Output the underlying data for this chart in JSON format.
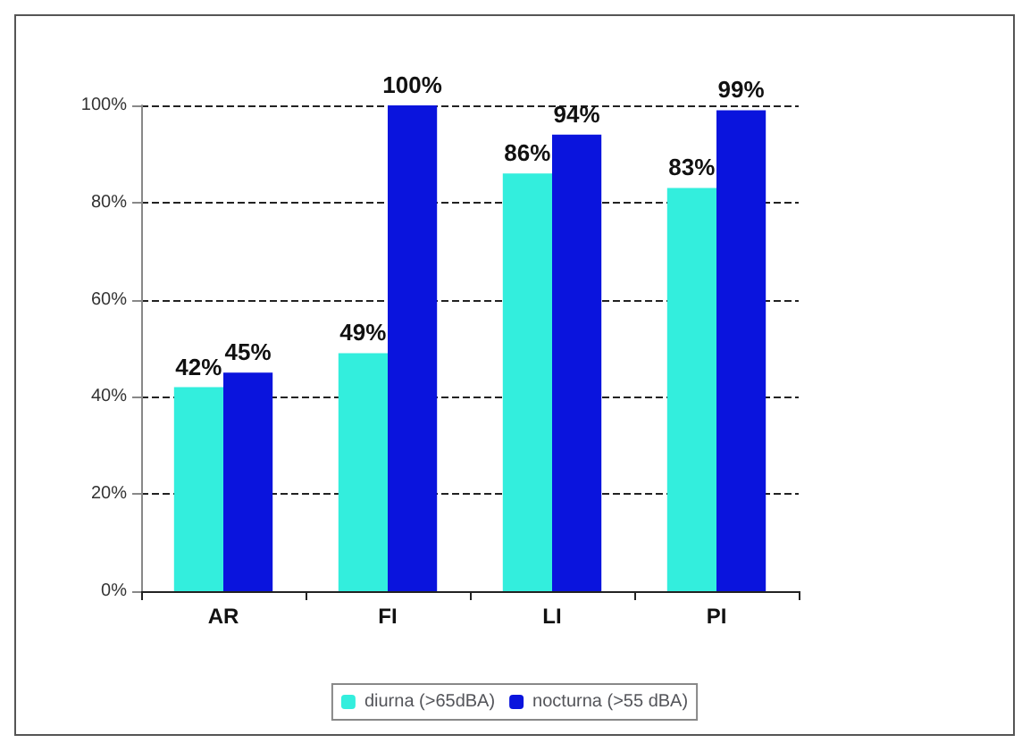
{
  "chart_data": {
    "type": "bar",
    "categories": [
      "AR",
      "FI",
      "LI",
      "PI"
    ],
    "series": [
      {
        "name": "diurna (>65dBA)",
        "color": "#33eedd",
        "values": [
          42,
          49,
          86,
          83
        ],
        "value_labels": [
          "42%",
          "49%",
          "86%",
          "83%"
        ]
      },
      {
        "name": "nocturna (>55 dBA)",
        "color": "#0a14dd",
        "values": [
          45,
          100,
          94,
          99
        ],
        "value_labels": [
          "45%",
          "100%",
          "94%",
          "99%"
        ]
      }
    ],
    "ylim": [
      0,
      100
    ],
    "yticks": [
      {
        "value": 0,
        "label": "0%"
      },
      {
        "value": 20,
        "label": "20%"
      },
      {
        "value": 40,
        "label": "40%"
      },
      {
        "value": 60,
        "label": "60%"
      },
      {
        "value": 80,
        "label": "80%"
      },
      {
        "value": 100,
        "label": "100%"
      }
    ],
    "grid": "y",
    "line_style": "dashed",
    "legend": "bottom"
  }
}
